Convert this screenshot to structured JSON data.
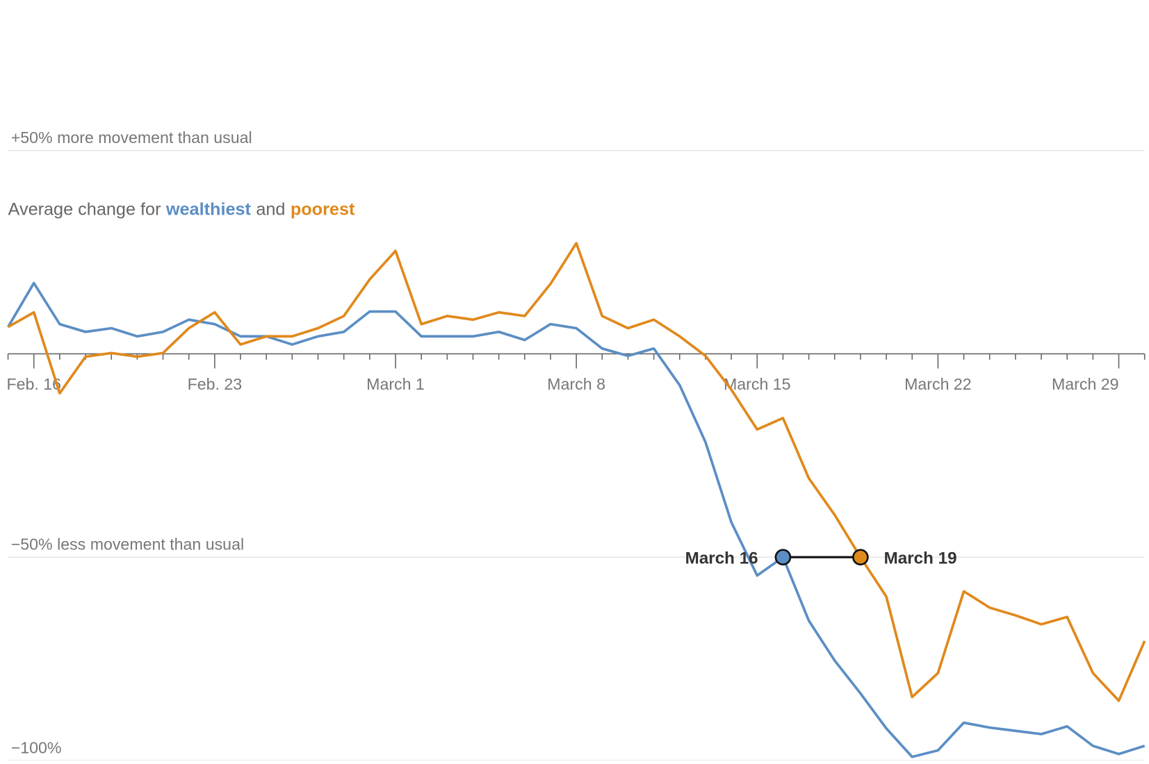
{
  "chart_data": {
    "type": "line",
    "subtitle_prefix": "Average change for",
    "subtitle_joiner": "and",
    "categories": [
      null,
      "Feb. 16",
      null,
      null,
      null,
      null,
      null,
      null,
      "Feb. 23",
      null,
      null,
      null,
      null,
      null,
      null,
      "March 1",
      null,
      null,
      null,
      null,
      null,
      null,
      "March 8",
      null,
      null,
      null,
      null,
      null,
      null,
      "March 15",
      null,
      null,
      null,
      null,
      null,
      null,
      "March 22",
      null,
      null,
      null,
      null,
      null,
      null,
      "March 29",
      null
    ],
    "series": [
      {
        "name": "wealthiest",
        "color": "#5b8ec4",
        "values": [
          6.6,
          17.4,
          7.3,
          5.4,
          6.3,
          4.3,
          5.4,
          8.4,
          7.3,
          4.3,
          4.3,
          2.3,
          4.3,
          5.4,
          10.4,
          10.4,
          4.3,
          4.3,
          4.3,
          5.4,
          3.4,
          7.3,
          6.3,
          1.3,
          -0.5,
          1.3,
          -7.7,
          -21.7,
          -41.4,
          -54.5,
          -50,
          -65.6,
          -75.4,
          -83.5,
          -92.1,
          -99.1,
          -97.5,
          -90.7,
          -91.9,
          -92.7,
          -93.5,
          -91.6,
          -96.4,
          -98.4,
          -96.4
        ]
      },
      {
        "name": "poorest",
        "color": "#e0891c",
        "values": [
          6.6,
          10.2,
          -9.7,
          -0.7,
          0.2,
          -0.7,
          0.2,
          6.3,
          10.2,
          2.3,
          4.3,
          4.3,
          6.3,
          9.3,
          18.3,
          25.3,
          7.3,
          9.3,
          8.4,
          10.2,
          9.3,
          17.2,
          27.2,
          9.3,
          6.3,
          8.4,
          4.3,
          -0.5,
          -8.8,
          -18.6,
          -15.8,
          -30.6,
          -39.6,
          -50,
          -59.7,
          -84.4,
          -78.5,
          -58.4,
          -62.4,
          -64.3,
          -66.5,
          -64.7,
          -78.5,
          -85.3,
          -70.6
        ]
      }
    ],
    "ylim": [
      -100,
      87
    ],
    "yticks": [
      {
        "value": 50,
        "label": "+50% more movement than usual"
      },
      {
        "value": -50,
        "label": "−50% less movement than usual"
      },
      {
        "value": -100,
        "label": "−100%"
      }
    ],
    "grid": true,
    "annotations": [
      {
        "text": "March 16",
        "x": 30,
        "y": -50
      },
      {
        "text": "March 19",
        "x": 33,
        "y": -50
      }
    ]
  }
}
